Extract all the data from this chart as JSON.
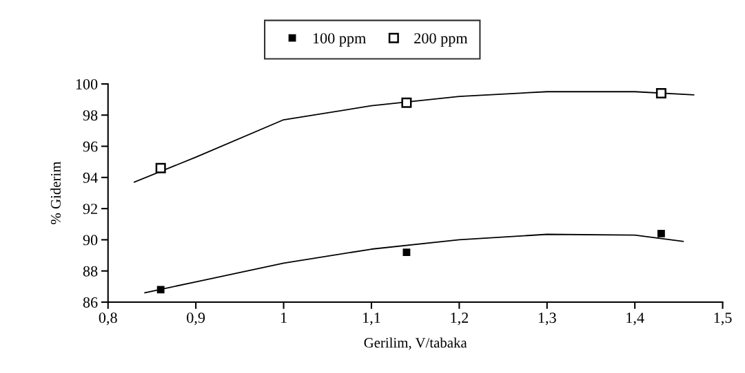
{
  "chart_data": {
    "type": "scatter",
    "xlabel": "Gerilim, V/tabaka",
    "ylabel": "% Giderim",
    "xlim": [
      0.8,
      1.5
    ],
    "xticks": [
      {
        "value": 0.8,
        "label": "0,8"
      },
      {
        "value": 0.9,
        "label": "0,9"
      },
      1,
      {
        "value": 1.1,
        "label": "1,1"
      },
      {
        "value": 1.2,
        "label": "1,2"
      },
      {
        "value": 1.3,
        "label": "1,3"
      },
      {
        "value": 1.4,
        "label": "1,4"
      },
      {
        "value": 1.5,
        "label": "1,5"
      }
    ],
    "ylim": [
      86,
      100
    ],
    "yticks": [
      86,
      88,
      90,
      92,
      94,
      96,
      98,
      100
    ],
    "grid": false,
    "legend": "top",
    "series": [
      {
        "name": "100 ppm",
        "marker": "square",
        "color": "#000000",
        "x": [
          0.86,
          1.14,
          1.43
        ],
        "values": [
          86.8,
          89.2,
          90.4
        ]
      },
      {
        "name": "200 ppm",
        "marker": "square",
        "color": "#000000",
        "x": [
          0.86,
          1.14,
          1.43
        ],
        "values": [
          94.6,
          98.8,
          99.4
        ]
      },
      {
        "type": "line",
        "marker": "none",
        "color": "#000000",
        "x": [
          0.842,
          0.9,
          1.0,
          1.1,
          1.2,
          1.3,
          1.4,
          1.455
        ],
        "values": [
          86.6,
          87.3,
          88.5,
          89.4,
          90.0,
          90.35,
          90.3,
          89.9
        ]
      },
      {
        "type": "line",
        "marker": "none",
        "color": "#000000",
        "x": [
          0.83,
          0.9,
          1.0,
          1.1,
          1.2,
          1.3,
          1.4,
          1.467
        ],
        "values": [
          93.7,
          95.3,
          97.7,
          98.6,
          99.2,
          99.5,
          99.5,
          99.3
        ]
      }
    ]
  }
}
